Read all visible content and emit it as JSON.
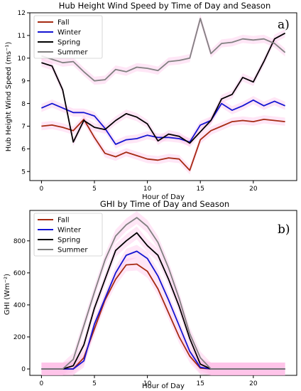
{
  "colors": {
    "Fall": "#a52a12",
    "Winter": "#1414d2",
    "Spring": "#000000",
    "Summer": "#808080",
    "shade": "#ffb6e6"
  },
  "chart_data": [
    {
      "type": "line",
      "title": "Hub Height Wind Speed by Time of Day and Season",
      "xlabel": "Hour of Day",
      "ylabel": "Hub Height Wind Speed (ms⁻¹)",
      "panel_label": "a)",
      "xlim": [
        -1.1,
        24.1
      ],
      "ylim": [
        4.6,
        12.0
      ],
      "xticks": [
        0,
        5,
        10,
        15,
        20
      ],
      "yticks": [
        5,
        6,
        7,
        8,
        9,
        10,
        11,
        12
      ],
      "legend": "top-left",
      "x": [
        0,
        1,
        2,
        3,
        4,
        5,
        6,
        7,
        8,
        9,
        10,
        11,
        12,
        13,
        14,
        15,
        16,
        17,
        18,
        19,
        20,
        21,
        22,
        23
      ],
      "series": [
        {
          "name": "Fall",
          "values": [
            7.0,
            7.05,
            6.95,
            6.8,
            7.3,
            6.5,
            5.8,
            5.65,
            5.85,
            5.7,
            5.55,
            5.5,
            5.6,
            5.55,
            5.05,
            6.4,
            6.8,
            7.0,
            7.2,
            7.25,
            7.2,
            7.3,
            7.25,
            7.2
          ]
        },
        {
          "name": "Winter",
          "values": [
            7.8,
            8.0,
            7.8,
            7.6,
            7.6,
            7.45,
            6.9,
            6.2,
            6.4,
            6.45,
            6.6,
            6.5,
            6.5,
            6.45,
            6.3,
            7.05,
            7.25,
            8.0,
            7.7,
            7.9,
            8.15,
            7.9,
            8.1,
            7.9
          ]
        },
        {
          "name": "Spring",
          "values": [
            9.8,
            9.65,
            8.6,
            6.3,
            7.25,
            6.95,
            6.85,
            7.25,
            7.55,
            7.4,
            7.1,
            6.35,
            6.65,
            6.55,
            6.25,
            6.75,
            7.25,
            8.2,
            8.4,
            9.15,
            8.95,
            9.85,
            10.85,
            11.1
          ]
        },
        {
          "name": "Summer",
          "values": [
            10.1,
            9.95,
            9.8,
            9.85,
            9.4,
            9.0,
            9.05,
            9.5,
            9.4,
            9.6,
            9.55,
            9.45,
            9.85,
            9.9,
            10.0,
            11.75,
            10.2,
            10.65,
            10.7,
            10.85,
            10.8,
            10.85,
            10.65,
            10.25
          ]
        }
      ]
    },
    {
      "type": "line",
      "title": "GHI by Time of Day and Season",
      "xlabel": "Hour of Day",
      "ylabel": "GHI (Wm⁻²)",
      "panel_label": "b)",
      "xlim": [
        -1.1,
        24.1
      ],
      "ylim": [
        -40,
        990
      ],
      "xticks": [
        0,
        5,
        10,
        15,
        20
      ],
      "yticks": [
        0,
        200,
        400,
        600,
        800
      ],
      "legend": "top-left",
      "x": [
        0,
        1,
        2,
        3,
        4,
        5,
        6,
        7,
        8,
        9,
        10,
        11,
        12,
        13,
        14,
        15,
        16,
        17,
        18,
        19,
        20,
        21,
        22,
        23
      ],
      "series": [
        {
          "name": "Fall",
          "values": [
            0,
            0,
            0,
            0,
            70,
            250,
            430,
            560,
            650,
            655,
            610,
            500,
            350,
            200,
            80,
            5,
            0,
            0,
            0,
            0,
            0,
            0,
            0,
            0
          ]
        },
        {
          "name": "Winter",
          "values": [
            0,
            0,
            0,
            0,
            50,
            280,
            440,
            600,
            710,
            735,
            690,
            580,
            430,
            270,
            110,
            10,
            0,
            0,
            0,
            0,
            0,
            0,
            0,
            0
          ]
        },
        {
          "name": "Spring",
          "values": [
            0,
            0,
            0,
            20,
            150,
            380,
            560,
            740,
            800,
            850,
            770,
            710,
            560,
            390,
            190,
            30,
            0,
            0,
            0,
            0,
            0,
            0,
            0,
            0
          ]
        },
        {
          "name": "Summer",
          "values": [
            0,
            0,
            0,
            60,
            270,
            480,
            680,
            830,
            900,
            945,
            890,
            790,
            630,
            440,
            220,
            70,
            0,
            0,
            0,
            0,
            0,
            0,
            0,
            0
          ]
        }
      ]
    }
  ]
}
